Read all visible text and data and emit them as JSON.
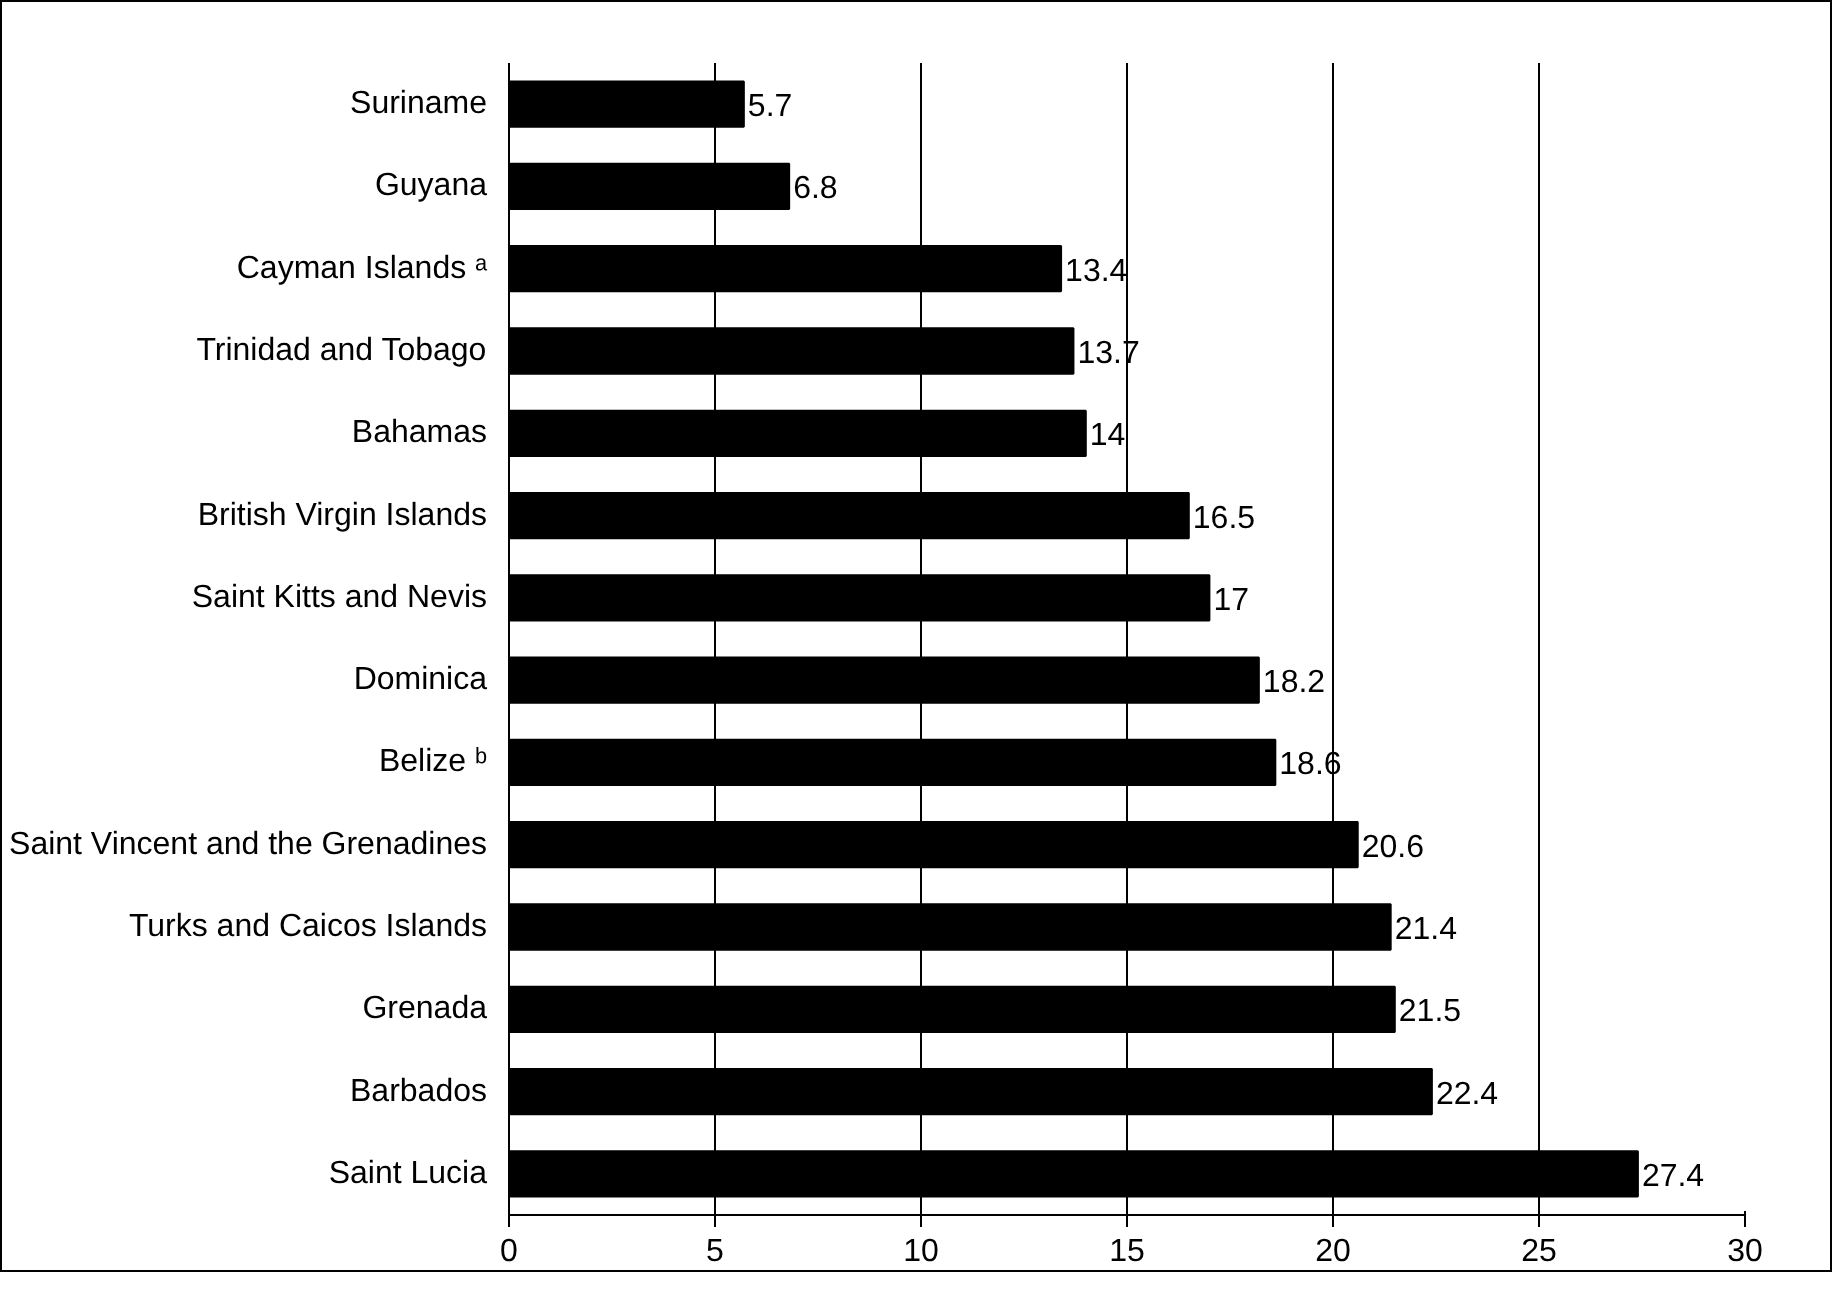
{
  "chart_data": {
    "type": "bar",
    "orientation": "horizontal",
    "categories": [
      "Suriname",
      "Guyana",
      "Cayman Islands ᵃ",
      "Trinidad and Tobago",
      "Bahamas",
      "British Virgin Islands",
      "Saint Kitts and Nevis",
      "Dominica",
      "Belize ᵇ",
      "Saint Vincent and the Grenadines",
      "Turks and Caicos Islands",
      "Grenada",
      "Barbados",
      "Saint Lucia"
    ],
    "values": [
      5.7,
      6.8,
      13.4,
      13.7,
      14,
      16.5,
      17,
      18.2,
      18.6,
      20.6,
      21.4,
      21.5,
      22.4,
      27.4
    ],
    "color": "#000000",
    "xlim": [
      0,
      30
    ],
    "xticks": [
      0,
      5,
      10,
      15,
      20,
      25,
      30
    ],
    "grid": "x",
    "data_labels": true
  }
}
